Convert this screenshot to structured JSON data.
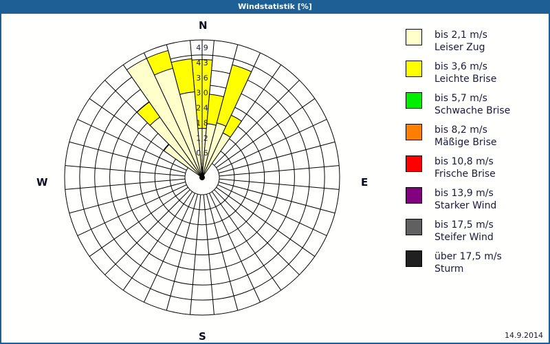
{
  "window": {
    "title": "Windstatistik [%]"
  },
  "compass": {
    "north": "N",
    "east": "E",
    "south": "S",
    "west": "W"
  },
  "footer": {
    "date": "14.9.2014"
  },
  "legend": [
    {
      "range": "bis 2,1 m/s",
      "name": "Leiser Zug",
      "color": "#ffffcc"
    },
    {
      "range": "bis 3,6 m/s",
      "name": "Leichte Brise",
      "color": "#ffff00"
    },
    {
      "range": "bis 5,7 m/s",
      "name": "Schwache Brise",
      "color": "#00ee00"
    },
    {
      "range": "bis 8,2 m/s",
      "name": "Mäßige Brise",
      "color": "#ff8000"
    },
    {
      "range": "bis 10,8 m/s",
      "name": "Frische Brise",
      "color": "#ff0000"
    },
    {
      "range": "bis 13,9 m/s",
      "name": "Starker Wind",
      "color": "#800080"
    },
    {
      "range": "bis 17,5 m/s",
      "name": "Steifer Wind",
      "color": "#606060"
    },
    {
      "range": "über 17,5 m/s",
      "name": "Sturm",
      "color": "#202020"
    }
  ],
  "chart_data": {
    "type": "windrose",
    "title": "Windstatistik [%]",
    "unit": "%",
    "radial_ticks": [
      "0,6",
      "1,2",
      "1,8",
      "2,4",
      "3,0",
      "3,6",
      "4,3",
      "4,9"
    ],
    "rmax": 4.9,
    "sector_width_deg": 10,
    "series": [
      {
        "name": "bis 2,1 m/s Leiser Zug",
        "color": "#ffffcc",
        "directions": [
          0,
          10,
          20,
          30,
          310,
          320,
          330,
          340,
          350
        ],
        "values": [
          1.3,
          1.5,
          1.6,
          1.3,
          1.2,
          2.3,
          4.65,
          3.9,
          2.8
        ]
      },
      {
        "name": "bis 3,6 m/s Leichte Brise",
        "color": "#ffff00",
        "directions": [
          0,
          10,
          20,
          30,
          310,
          320,
          330,
          340,
          350
        ],
        "values": [
          2.8,
          1.2,
          2.45,
          0.8,
          0.0,
          0.75,
          0.0,
          0.75,
          1.35
        ]
      }
    ],
    "cumulative_totals": {
      "0": 4.1,
      "10": 2.7,
      "20": 4.05,
      "30": 2.1,
      "310": 1.2,
      "320": 3.05,
      "330": 4.65,
      "340": 4.65,
      "350": 4.15
    },
    "legend_position": "right"
  }
}
